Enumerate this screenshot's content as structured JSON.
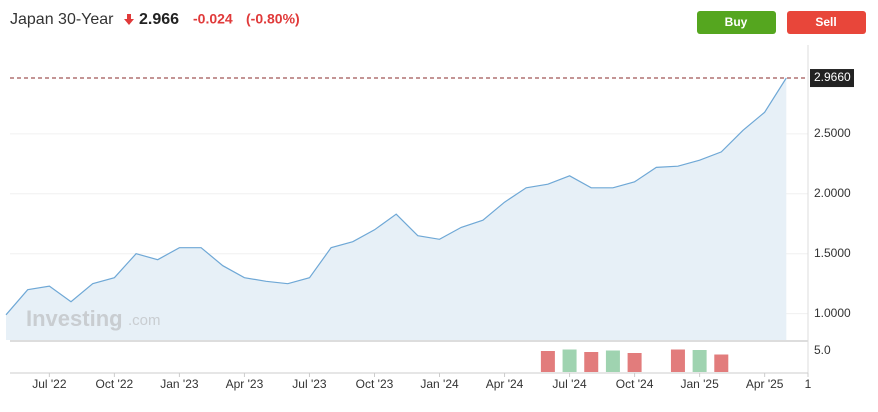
{
  "header": {
    "title": "Japan 30-Year",
    "last": 2.966,
    "change": -0.024,
    "change_pct": {
      "value": -0.8,
      "label": "(-0.80%)"
    }
  },
  "buttons": {
    "buy": "Buy",
    "sell": "Sell"
  },
  "watermark": {
    "brand": "Investing",
    "suffix": ".com"
  },
  "chart_data": [
    {
      "type": "area",
      "color": "#6fa8d6",
      "fill": "#e7f0f7",
      "grid": true,
      "x": [
        "2022-05",
        "2022-06",
        "2022-07",
        "2022-08",
        "2022-09",
        "2022-10",
        "2022-11",
        "2022-12",
        "2023-01",
        "2023-02",
        "2023-03",
        "2023-04",
        "2023-05",
        "2023-06",
        "2023-07",
        "2023-08",
        "2023-09",
        "2023-10",
        "2023-11",
        "2023-12",
        "2024-01",
        "2024-02",
        "2024-03",
        "2024-04",
        "2024-05",
        "2024-06",
        "2024-07",
        "2024-08",
        "2024-09",
        "2024-10",
        "2024-11",
        "2024-12",
        "2025-01",
        "2025-02",
        "2025-03",
        "2025-04",
        "2025-05"
      ],
      "values": [
        0.99,
        1.2,
        1.23,
        1.1,
        1.25,
        1.3,
        1.5,
        1.45,
        1.55,
        1.55,
        1.4,
        1.3,
        1.27,
        1.25,
        1.3,
        1.55,
        1.6,
        1.7,
        1.83,
        1.65,
        1.62,
        1.72,
        1.78,
        1.93,
        2.05,
        2.08,
        2.15,
        2.05,
        2.05,
        2.1,
        2.22,
        2.23,
        2.28,
        2.35,
        2.53,
        2.68,
        2.966
      ],
      "xlim": [
        "2022-05",
        "2025-06"
      ],
      "xticks": [
        {
          "value": "2022-07",
          "label": "Jul '22"
        },
        {
          "value": "2022-10",
          "label": "Oct '22"
        },
        {
          "value": "2023-01",
          "label": "Jan '23"
        },
        {
          "value": "2023-04",
          "label": "Apr '23"
        },
        {
          "value": "2023-07",
          "label": "Jul '23"
        },
        {
          "value": "2023-10",
          "label": "Oct '23"
        },
        {
          "value": "2024-01",
          "label": "Jan '24"
        },
        {
          "value": "2024-04",
          "label": "Apr '24"
        },
        {
          "value": "2024-07",
          "label": "Jul '24"
        },
        {
          "value": "2024-10",
          "label": "Oct '24"
        },
        {
          "value": "2025-01",
          "label": "Jan '25"
        },
        {
          "value": "2025-04",
          "label": "Apr '25"
        },
        {
          "value": "2025-06",
          "label": "1"
        }
      ],
      "ylim": [
        0.78,
        3.2
      ],
      "yticks": [
        {
          "value": 1,
          "label": "1.0000"
        },
        {
          "value": 1.5,
          "label": "1.5000"
        },
        {
          "value": 2,
          "label": "2.0000"
        },
        {
          "value": 2.5,
          "label": "2.5000"
        }
      ],
      "last_marker": {
        "value": 2.966,
        "label": "2.9660"
      }
    },
    {
      "type": "bar",
      "x": [
        "2024-06",
        "2024-07",
        "2024-08",
        "2024-09",
        "2024-10",
        "2024-12",
        "2025-01",
        "2025-02"
      ],
      "values": [
        4.2,
        4.5,
        4.0,
        4.3,
        3.8,
        4.5,
        4.4,
        3.5
      ],
      "colors": [
        "#e27c7c",
        "#9fd3b0",
        "#e27c7c",
        "#9fd3b0",
        "#e27c7c",
        "#e27c7c",
        "#9fd3b0",
        "#e27c7c"
      ],
      "ylim": [
        0,
        6
      ],
      "yticks": [
        {
          "value": 5,
          "label": "5.0"
        }
      ]
    }
  ]
}
